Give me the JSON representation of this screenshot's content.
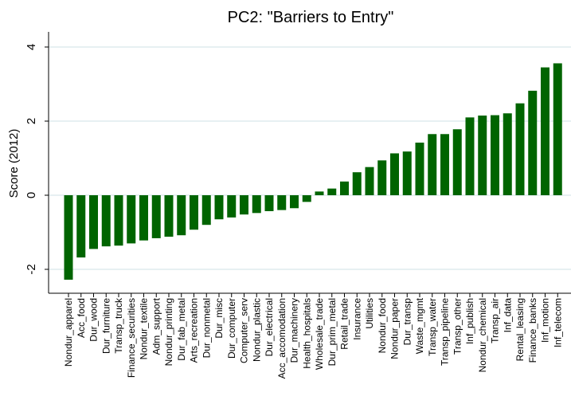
{
  "chart_data": {
    "type": "bar",
    "title": "PC2: \"Barriers to Entry\"",
    "xlabel": "",
    "ylabel": "Score (2012)",
    "ylim": [
      -2.3,
      4.0
    ],
    "yticks": [
      -2,
      0,
      2,
      4
    ],
    "grid": true,
    "bar_color": "#006400",
    "categories": [
      "Nondur_apparel",
      "Acc_food",
      "Dur_wood",
      "Dur_furniture",
      "Transp_truck",
      "Finance_securities",
      "Nondur_textile",
      "Adm_support",
      "Nondur_printing",
      "Dur_fab_metal",
      "Arts_recreation",
      "Dur_nonmetal",
      "Dur_misc",
      "Dur_computer",
      "Computer_serv",
      "Nondur_plastic",
      "Dur_electrical",
      "Acc_accomodation",
      "Dur_machinery",
      "Health_hospitals",
      "Wholesale_trade",
      "Dur_prim_metal",
      "Retail_trade",
      "Insurance",
      "Utilities",
      "Nondur_food",
      "Nondur_paper",
      "Dur_transp",
      "Waste_mgmt",
      "Transp_water",
      "Transp_pipeline",
      "Transp_other",
      "Inf_publish",
      "Nondur_chemical",
      "Transp_air",
      "Inf_data",
      "Rental_leasing",
      "Finance_banks",
      "Inf_motion",
      "Inf_telecom"
    ],
    "values": [
      -2.28,
      -1.68,
      -1.45,
      -1.38,
      -1.36,
      -1.3,
      -1.22,
      -1.16,
      -1.12,
      -1.08,
      -0.93,
      -0.8,
      -0.65,
      -0.6,
      -0.52,
      -0.48,
      -0.43,
      -0.4,
      -0.35,
      -0.18,
      0.1,
      0.18,
      0.37,
      0.62,
      0.76,
      0.94,
      1.13,
      1.18,
      1.42,
      1.65,
      1.65,
      1.78,
      2.1,
      2.15,
      2.16,
      2.21,
      2.48,
      2.82,
      3.45,
      3.56
    ]
  }
}
